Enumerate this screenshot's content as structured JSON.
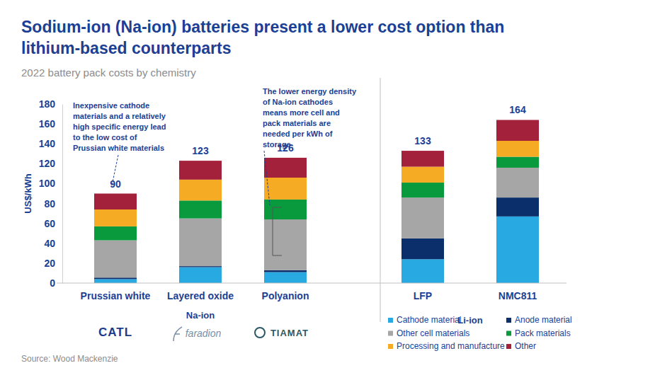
{
  "chart_data": {
    "type": "bar",
    "stacked": true,
    "title": "Sodium-ion (Na-ion) batteries present a lower cost option than lithium-based counterparts",
    "subtitle": "2022 battery pack costs by chemistry",
    "y_label": "US$/kWh",
    "categories": [
      "Prussian white",
      "Layered oxide",
      "Polyanion",
      "LFP",
      "NMC811"
    ],
    "series": [
      {
        "name": "Cathode material",
        "color": "#29a9e1",
        "values": [
          4,
          16,
          11,
          24,
          67
        ]
      },
      {
        "name": "Anode material",
        "color": "#0b2f6b",
        "values": [
          1.5,
          1,
          2,
          21,
          19
        ]
      },
      {
        "name": "Other cell materials",
        "color": "#a6a6a6",
        "values": [
          37.5,
          48,
          51,
          41,
          30
        ]
      },
      {
        "name": "Pack materials",
        "color": "#0a9a3e",
        "values": [
          14,
          18,
          20,
          15,
          11
        ]
      },
      {
        "name": "Processing and manufacture",
        "color": "#f5ab23",
        "values": [
          17,
          21,
          22,
          16,
          16
        ]
      },
      {
        "name": "Other",
        "color": "#a3213a",
        "values": [
          16,
          19,
          20,
          16,
          21
        ]
      }
    ],
    "totals": [
      90,
      123,
      126,
      133,
      164
    ],
    "ylim": [
      0,
      180
    ],
    "yticks": [
      0,
      20,
      40,
      60,
      80,
      100,
      120,
      140,
      160,
      180
    ],
    "grid": false,
    "legend": "lower right",
    "groups": [
      {
        "name": "Na-ion",
        "categories": [
          "Prussian white",
          "Layered oxide",
          "Polyanion"
        ]
      },
      {
        "name": "Li-ion",
        "categories": [
          "LFP",
          "NMC811"
        ]
      }
    ],
    "logos": [
      "CATL",
      "faradion",
      "TIAMAT"
    ],
    "annotations": [
      {
        "category": "Prussian white",
        "text": [
          "Inexpensive cathode",
          "materials and a relatively",
          "high specific energy lead",
          "to the low cost of",
          "Prussian white materials"
        ]
      },
      {
        "category": "Polyanion",
        "text": [
          "The lower energy density",
          "of Na-ion cathodes",
          "means more cell and",
          "pack materials are",
          "needed per kWh of",
          "storage"
        ]
      }
    ],
    "source": "Source: Wood Mackenzie"
  }
}
